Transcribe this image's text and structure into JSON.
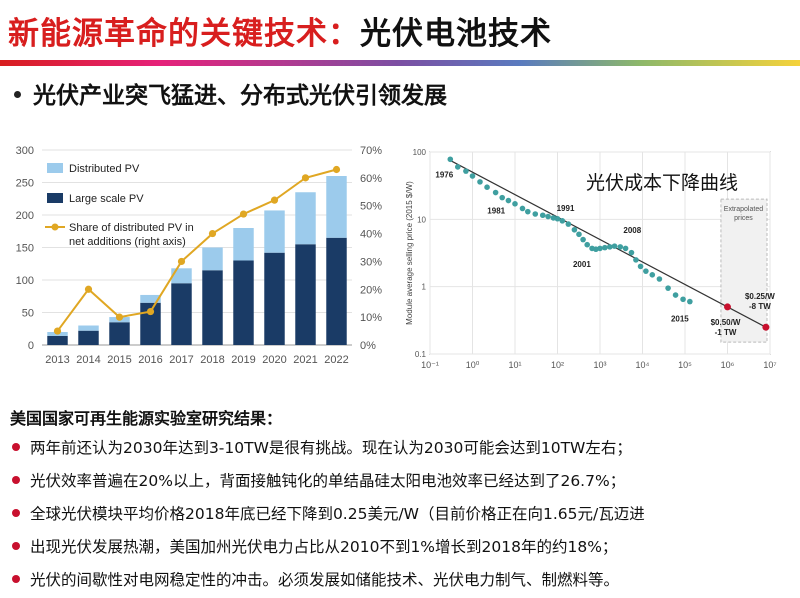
{
  "header": {
    "title_red": "新能源革命的关键技术：",
    "title_black": "光伏电池技术",
    "subtitle": "光伏产业突飞猛进、分布式光伏引领发展"
  },
  "colors": {
    "accent_red": "#d81e1e",
    "bar_dark": "#1a3b66",
    "bar_light": "#9ccbec",
    "line_gold": "#e0a723",
    "scatter_teal": "#3f9fa0"
  },
  "chart_data": [
    {
      "type": "bar",
      "categories": [
        "2013",
        "2014",
        "2015",
        "2016",
        "2017",
        "2018",
        "2019",
        "2020",
        "2021",
        "2022"
      ],
      "series": [
        {
          "name": "Large scale PV",
          "values": [
            14,
            22,
            35,
            65,
            95,
            115,
            130,
            142,
            155,
            165
          ]
        },
        {
          "name": "Distributed PV",
          "values": [
            6,
            8,
            8,
            12,
            23,
            35,
            50,
            65,
            80,
            95
          ]
        },
        {
          "name": "Share of distributed PV in net additions (right axis)",
          "axis": "right",
          "values": [
            5,
            20,
            10,
            12,
            30,
            40,
            47,
            52,
            60,
            63
          ]
        }
      ],
      "ylim": [
        0,
        300
      ],
      "yticks": [
        "0",
        "50",
        "100",
        "150",
        "200",
        "250",
        "300"
      ],
      "y2lim": [
        0,
        70
      ],
      "y2ticks": [
        "0%",
        "10%",
        "20%",
        "30%",
        "40%",
        "50%",
        "60%",
        "70%"
      ],
      "legend": [
        {
          "label": "Distributed PV"
        },
        {
          "label": "Large scale PV"
        },
        {
          "label": "Share of distributed PV in",
          "label2": "net additions (right axis)"
        }
      ],
      "legend_position": "top-left"
    },
    {
      "type": "scatter",
      "caption": "光伏成本下降曲线",
      "x_scale": "log",
      "y_scale": "log",
      "ylabel": "Module average selling price (2015 $/W)",
      "xlim": [
        0.1,
        10000000
      ],
      "ylim": [
        0.1,
        100
      ],
      "xticks": [
        "10⁰",
        "10¹",
        "10²",
        "10³",
        "10⁴",
        "10⁵",
        "10⁶",
        "10⁷"
      ],
      "xtick_first": "10⁻¹",
      "yticks": [
        "100",
        "10",
        "1",
        "0.1"
      ],
      "points": [
        [
          0.3,
          78
        ],
        [
          0.45,
          60
        ],
        [
          0.7,
          52
        ],
        [
          1,
          44
        ],
        [
          1.5,
          36
        ],
        [
          2.2,
          30
        ],
        [
          3.5,
          25
        ],
        [
          5,
          21
        ],
        [
          7,
          19
        ],
        [
          10,
          17
        ],
        [
          15,
          14.5
        ],
        [
          20,
          13
        ],
        [
          30,
          12
        ],
        [
          45,
          11.5
        ],
        [
          60,
          11
        ],
        [
          80,
          10.5
        ],
        [
          100,
          10.2
        ],
        [
          130,
          9.5
        ],
        [
          180,
          8.5
        ],
        [
          250,
          7
        ],
        [
          320,
          6
        ],
        [
          400,
          5
        ],
        [
          500,
          4.2
        ],
        [
          650,
          3.7
        ],
        [
          800,
          3.6
        ],
        [
          1000,
          3.7
        ],
        [
          1300,
          3.8
        ],
        [
          1700,
          3.9
        ],
        [
          2200,
          4
        ],
        [
          3000,
          3.9
        ],
        [
          4000,
          3.7
        ],
        [
          5500,
          3.2
        ],
        [
          7000,
          2.5
        ],
        [
          9000,
          2
        ],
        [
          12000,
          1.7
        ],
        [
          17000,
          1.5
        ],
        [
          25000,
          1.3
        ],
        [
          40000,
          0.95
        ],
        [
          60000,
          0.75
        ],
        [
          90000,
          0.65
        ],
        [
          130000,
          0.6
        ]
      ],
      "labeled_points": [
        {
          "label": "1976",
          "x": 0.3,
          "y": 78
        },
        {
          "label": "1981",
          "x": 5,
          "y": 21
        },
        {
          "label": "1991",
          "x": 100,
          "y": 10.2
        },
        {
          "label": "2001",
          "x": 800,
          "y": 3.6
        },
        {
          "label": "2008",
          "x": 3000,
          "y": 3.9
        },
        {
          "label": "2015",
          "x": 130000,
          "y": 0.6
        }
      ],
      "extrapolated": {
        "label_line1": "Extrapolated",
        "label_line2": "prices",
        "points": [
          {
            "x": 1000000,
            "y": 0.5,
            "label1": "$0.50/W",
            "label2": "-1 TW"
          },
          {
            "x": 8000000,
            "y": 0.25,
            "label1": "$0.25/W",
            "label2": "-8 TW"
          }
        ]
      },
      "trend": [
        [
          0.3,
          75
        ],
        [
          8000000,
          0.25
        ]
      ]
    }
  ],
  "nrel": {
    "title": "美国国家可再生能源实验室研究结果：",
    "items": [
      "两年前还认为2030年达到3-10TW是很有挑战。现在认为2030可能会达到10TW左右；",
      "光伏效率普遍在20%以上，背面接触钝化的单结晶硅太阳电池效率已经达到了26.7%；",
      "全球光伏模块平均价格2018年底已经下降到0.25美元/W（目前价格正在向1.65元/瓦迈进",
      "出现光伏发展热潮，美国加州光伏电力占比从2010不到1%增长到2018年的约18%；",
      "光伏的间歇性对电网稳定性的冲击。必须发展如储能技术、光伏电力制气、制燃料等。"
    ]
  }
}
